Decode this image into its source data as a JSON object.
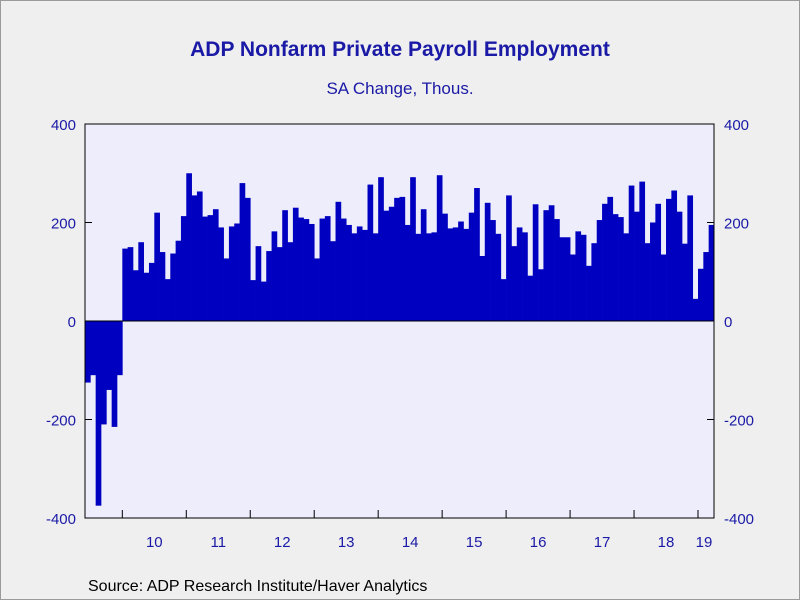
{
  "chart_data": {
    "type": "bar",
    "title": "ADP Nonfarm Private Payroll Employment",
    "subtitle": "SA Change, Thous.",
    "source": "Source:  ADP Research Institute/Haver Analytics",
    "ylim": [
      -400,
      400
    ],
    "yticks": [
      -400,
      -200,
      0,
      200,
      400
    ],
    "ytick_labels": [
      "-400",
      "-200",
      "0",
      "200",
      "400"
    ],
    "right_axis": true,
    "grid": false,
    "start": "2009-06",
    "x_year_labels": [
      {
        "label": "10",
        "year": 2010
      },
      {
        "label": "11",
        "year": 2011
      },
      {
        "label": "12",
        "year": 2012
      },
      {
        "label": "13",
        "year": 2013
      },
      {
        "label": "14",
        "year": 2014
      },
      {
        "label": "15",
        "year": 2015
      },
      {
        "label": "16",
        "year": 2016
      },
      {
        "label": "17",
        "year": 2017
      },
      {
        "label": "18",
        "year": 2018
      },
      {
        "label": "19",
        "year": 2019
      }
    ],
    "colors": {
      "bar": "#0000c0",
      "plot_bg": "#ededfb",
      "text": "#1a1aa6",
      "axis": "#000000"
    },
    "series": [
      {
        "values": [
          -125,
          -110,
          -375,
          -210,
          -140,
          -215,
          -110,
          147,
          150,
          103,
          160,
          98,
          118,
          220,
          140,
          85,
          137,
          163,
          213,
          300,
          255,
          263,
          212,
          215,
          227,
          190,
          127,
          192,
          198,
          280,
          250,
          83,
          152,
          80,
          142,
          182,
          150,
          225,
          160,
          230,
          210,
          207,
          197,
          127,
          208,
          213,
          162,
          242,
          208,
          195,
          178,
          192,
          185,
          277,
          178,
          292,
          224,
          232,
          250,
          252,
          195,
          292,
          177,
          227,
          178,
          180,
          296,
          218,
          188,
          190,
          202,
          187,
          220,
          270,
          132,
          240,
          205,
          177,
          85,
          255,
          152,
          190,
          180,
          92,
          237,
          105,
          225,
          235,
          207,
          170,
          170,
          135,
          182,
          175,
          112,
          158,
          205,
          238,
          252,
          217,
          211,
          178,
          275,
          222,
          283,
          158,
          200,
          238,
          135,
          248,
          265,
          222,
          157,
          255,
          45,
          106,
          140,
          195
        ]
      }
    ]
  }
}
